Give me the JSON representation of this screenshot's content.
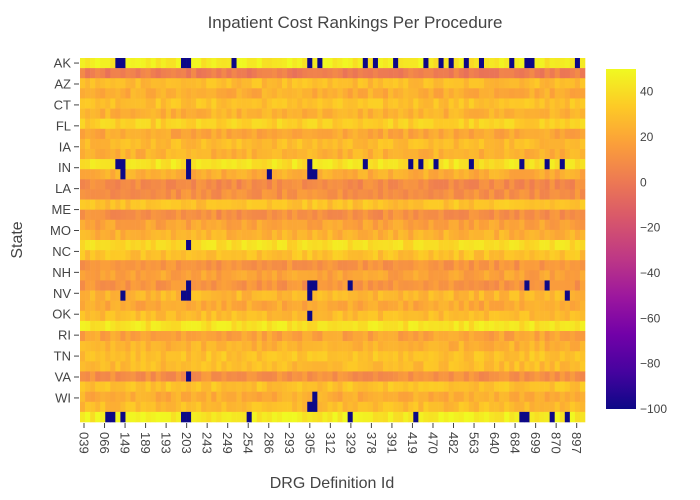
{
  "chart_data": {
    "type": "heatmap",
    "title": "Inpatient Cost Rankings Per Procedure",
    "xlabel": "DRG Definition Id",
    "ylabel": "State",
    "x_tick_labels": [
      "039",
      "066",
      "149",
      "189",
      "193",
      "203",
      "243",
      "249",
      "254",
      "286",
      "293",
      "305",
      "312",
      "329",
      "378",
      "391",
      "419",
      "470",
      "482",
      "563",
      "640",
      "684",
      "699",
      "870",
      "897"
    ],
    "y_tick_labels": [
      "AK",
      "AZ",
      "CT",
      "FL",
      "IA",
      "IN",
      "LA",
      "ME",
      "MO",
      "NC",
      "NH",
      "NV",
      "OK",
      "RI",
      "TN",
      "VA",
      "WI"
    ],
    "n_rows": 36,
    "n_cols": 100,
    "colorbar": {
      "range": [
        -100,
        50
      ],
      "tick_labels": [
        "40",
        "20",
        "0",
        "−20",
        "−40",
        "−60",
        "−80",
        "−100"
      ],
      "tick_values": [
        40,
        20,
        0,
        -20,
        -40,
        -60,
        -80,
        -100
      ],
      "colorscale": [
        "#0d0887",
        "#46039f",
        "#7201a8",
        "#9c179e",
        "#bd3786",
        "#d8576b",
        "#ed7953",
        "#fb9f3a",
        "#fdca26",
        "#f0f921"
      ]
    },
    "row_levels": [
      45,
      2,
      28,
      22,
      30,
      24,
      35,
      20,
      28,
      24,
      42,
      22,
      8,
      10,
      30,
      10,
      18,
      24,
      40,
      30,
      12,
      18,
      12,
      26,
      20,
      28,
      42,
      18,
      24,
      30,
      28,
      10,
      30,
      22,
      28,
      45
    ],
    "outlier_value": -100,
    "outliers": [
      [
        0,
        13
      ],
      [
        0,
        16
      ],
      [
        0,
        38
      ],
      [
        0,
        39
      ],
      [
        0,
        57
      ],
      [
        0,
        85
      ],
      [
        0,
        89
      ],
      [
        0,
        106
      ],
      [
        0,
        110
      ],
      [
        0,
        118
      ],
      [
        0,
        129
      ],
      [
        0,
        130
      ],
      [
        0,
        134
      ],
      [
        0,
        139
      ],
      [
        0,
        144
      ],
      [
        0,
        150
      ],
      [
        0,
        151
      ],
      [
        0,
        162
      ],
      [
        0,
        168
      ],
      [
        0,
        169
      ],
      [
        0,
        186
      ],
      [
        10,
        13
      ],
      [
        10,
        16
      ],
      [
        10,
        39
      ],
      [
        10,
        85
      ],
      [
        10,
        107
      ],
      [
        10,
        124
      ],
      [
        10,
        128
      ],
      [
        10,
        133
      ],
      [
        10,
        147
      ],
      [
        10,
        165
      ],
      [
        10,
        175
      ],
      [
        10,
        181
      ],
      [
        11,
        16
      ],
      [
        11,
        39
      ],
      [
        11,
        70
      ],
      [
        11,
        85
      ],
      [
        11,
        86
      ],
      [
        11,
        87
      ],
      [
        18,
        39
      ],
      [
        22,
        39
      ],
      [
        22,
        85
      ],
      [
        22,
        86
      ],
      [
        22,
        87
      ],
      [
        22,
        101
      ],
      [
        22,
        168
      ],
      [
        22,
        175
      ],
      [
        23,
        16
      ],
      [
        23,
        38
      ],
      [
        23,
        39
      ],
      [
        23,
        85
      ],
      [
        23,
        183
      ],
      [
        25,
        85
      ],
      [
        31,
        39
      ],
      [
        33,
        88
      ],
      [
        34,
        85
      ],
      [
        34,
        86
      ],
      [
        34,
        87
      ],
      [
        35,
        10
      ],
      [
        35,
        11
      ],
      [
        35,
        16
      ],
      [
        35,
        38
      ],
      [
        35,
        39
      ],
      [
        35,
        63
      ],
      [
        35,
        101
      ],
      [
        35,
        125
      ],
      [
        35,
        165
      ],
      [
        35,
        166
      ],
      [
        35,
        167
      ],
      [
        35,
        176
      ],
      [
        35,
        183
      ]
    ],
    "outlier_cols_total": 190
  }
}
